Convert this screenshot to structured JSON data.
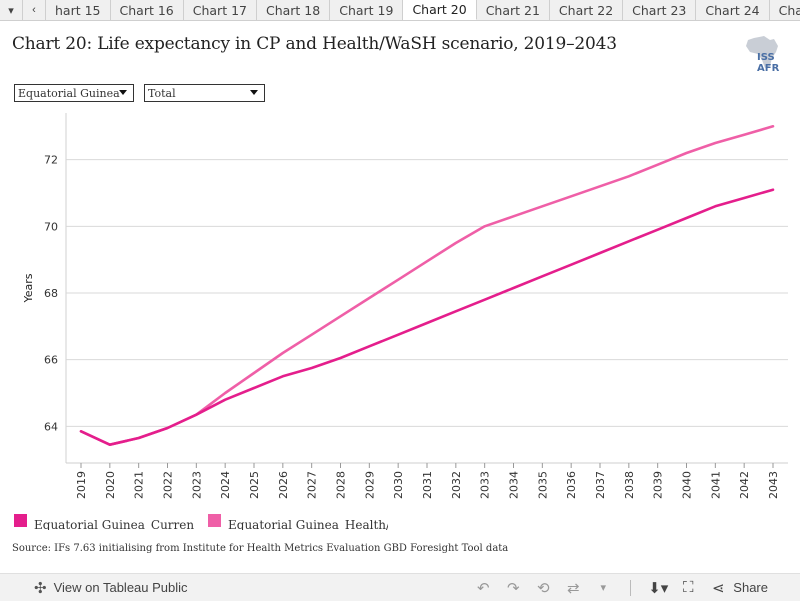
{
  "tabs": {
    "prev_icon": "chevron-left-icon",
    "next_icon": "chevron-right-icon",
    "items": [
      "hart 15",
      "Chart 16",
      "Chart 17",
      "Chart 18",
      "Chart 19",
      "Chart 20",
      "Chart 21",
      "Chart 22",
      "Chart 23",
      "Chart 24",
      "Chart"
    ],
    "active": "Chart 20"
  },
  "title": "Chart 20: Life expectancy in CP and Health/WaSH scenario, 2019–2043",
  "logo_text": "ISS AFR",
  "filters": {
    "country": "Equatorial Guinea",
    "measure": "Total"
  },
  "chart_data": {
    "type": "line",
    "ylabel": "Years",
    "xlabel": "",
    "x": [
      2019,
      2020,
      2021,
      2022,
      2023,
      2024,
      2025,
      2026,
      2027,
      2028,
      2029,
      2030,
      2031,
      2032,
      2033,
      2034,
      2035,
      2036,
      2037,
      2038,
      2039,
      2040,
      2041,
      2042,
      2043
    ],
    "ylim": [
      62.9,
      73.4
    ],
    "yticks": [
      64,
      66,
      68,
      70,
      72
    ],
    "grid": true,
    "legend_position": "bottom",
    "series": [
      {
        "name": "Equatorial Guinea_Curren",
        "color": "#e41e8c",
        "values": [
          63.85,
          63.45,
          63.65,
          63.95,
          64.35,
          64.8,
          65.15,
          65.5,
          65.75,
          66.05,
          66.4,
          66.75,
          67.1,
          67.45,
          67.8,
          68.15,
          68.5,
          68.85,
          69.2,
          69.55,
          69.9,
          70.25,
          70.6,
          70.85,
          71.1
        ]
      },
      {
        "name": "Equatorial Guinea_Health/",
        "color": "#ef5fa7",
        "values": [
          63.85,
          63.45,
          63.65,
          63.95,
          64.35,
          65.0,
          65.6,
          66.2,
          66.75,
          67.3,
          67.85,
          68.4,
          68.95,
          69.5,
          70.0,
          70.3,
          70.6,
          70.9,
          71.2,
          71.5,
          71.85,
          72.2,
          72.5,
          72.75,
          73.0
        ]
      }
    ]
  },
  "source": "Source: IFs 7.63 initialising from Institute for Health Metrics Evaluation GBD Foresight Tool data",
  "footer": {
    "view_label": "View on Tableau Public",
    "share_label": "Share"
  }
}
